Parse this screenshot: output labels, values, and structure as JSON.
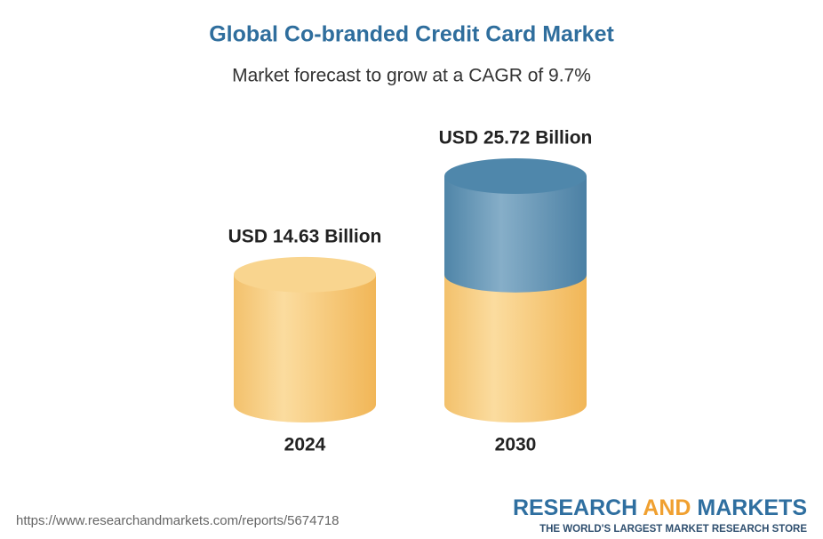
{
  "chart_data": {
    "type": "cylinder",
    "title": "Global Co-branded Credit Card Market",
    "subtitle": "Market forecast to grow at a CAGR of 9.7%",
    "categories": [
      "2024",
      "2030"
    ],
    "values": [
      14.63,
      25.72
    ],
    "value_labels": [
      "USD 14.63 Billion",
      "USD 25.72 Billion"
    ],
    "colors": [
      "#f5c26b",
      "#5e92b3"
    ]
  },
  "footer": {
    "url": "https://www.researchandmarkets.com/reports/5674718",
    "logo": [
      "RESEARCH",
      "AND",
      "MARKETS"
    ],
    "tagline": "THE WORLD'S LARGEST MARKET RESEARCH STORE"
  }
}
